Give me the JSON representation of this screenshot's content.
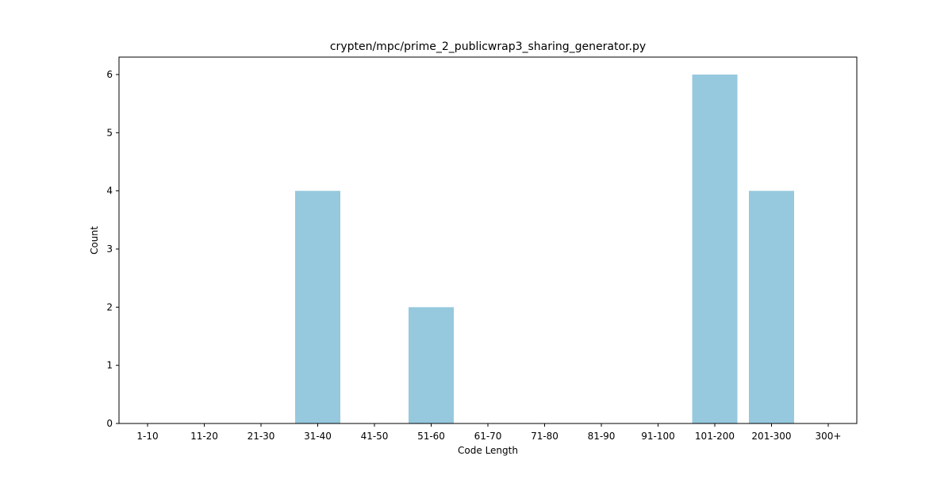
{
  "chart_data": {
    "type": "bar",
    "title": "crypten/mpc/prime_2_publicwrap3_sharing_generator.py",
    "xlabel": "Code Length",
    "ylabel": "Count",
    "categories": [
      "1-10",
      "11-20",
      "21-30",
      "31-40",
      "41-50",
      "51-60",
      "61-70",
      "71-80",
      "81-90",
      "91-100",
      "101-200",
      "201-300",
      "300+"
    ],
    "values": [
      0,
      0,
      0,
      4,
      0,
      2,
      0,
      0,
      0,
      0,
      6,
      4,
      0
    ],
    "yticks": [
      "0",
      "1",
      "2",
      "3",
      "4",
      "5",
      "6"
    ],
    "ylim": [
      0,
      6.3
    ],
    "grid": false,
    "bar_color": "#96c9dd",
    "axis_color": "#000000"
  }
}
